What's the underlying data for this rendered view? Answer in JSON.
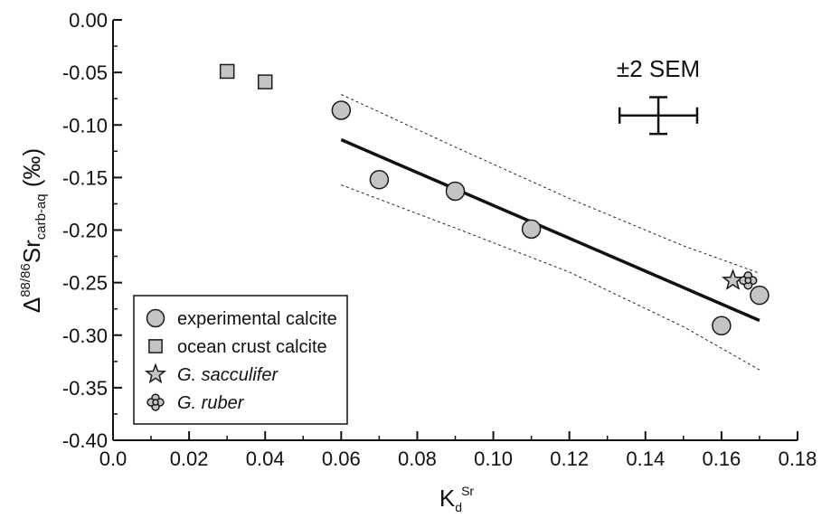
{
  "chart_data": {
    "type": "scatter",
    "xlabel": "K",
    "xlabel_sub": "d",
    "xlabel_sup": "Sr",
    "ylabel_prefix": "Δ",
    "ylabel_sup": "88/86",
    "ylabel_main": "Sr",
    "ylabel_sub": "carb-aq",
    "ylabel_unit": "(‰)",
    "xlim": [
      0.0,
      0.18
    ],
    "ylim": [
      -0.4,
      0.0
    ],
    "x_ticks": [
      "0.0",
      "0.02",
      "0.04",
      "0.06",
      "0.08",
      "0.10",
      "0.12",
      "0.14",
      "0.16",
      "0.18"
    ],
    "y_ticks": [
      "0.00",
      "-0.05",
      "-0.10",
      "-0.15",
      "-0.20",
      "-0.25",
      "-0.30",
      "-0.35",
      "-0.40"
    ],
    "grid": false,
    "legend_position": "bottom-left",
    "series": [
      {
        "name": "experimental calcite",
        "marker": "circle",
        "points": [
          {
            "x": 0.06,
            "y": -0.086
          },
          {
            "x": 0.07,
            "y": -0.152
          },
          {
            "x": 0.09,
            "y": -0.163
          },
          {
            "x": 0.11,
            "y": -0.199
          },
          {
            "x": 0.16,
            "y": -0.291
          },
          {
            "x": 0.17,
            "y": -0.262
          }
        ]
      },
      {
        "name": "ocean crust calcite",
        "marker": "square",
        "points": [
          {
            "x": 0.03,
            "y": -0.049
          },
          {
            "x": 0.04,
            "y": -0.059
          }
        ]
      },
      {
        "name": "G. sacculifer",
        "marker": "star",
        "italic": true,
        "points": [
          {
            "x": 0.163,
            "y": -0.248
          }
        ]
      },
      {
        "name": "G. ruber",
        "marker": "foram",
        "italic": true,
        "points": [
          {
            "x": 0.167,
            "y": -0.248
          }
        ]
      }
    ],
    "regression": {
      "x": [
        0.06,
        0.17
      ],
      "y": [
        -0.114,
        -0.286
      ]
    },
    "confidence_upper": [
      {
        "x": 0.06,
        "y": -0.071
      },
      {
        "x": 0.09,
        "y": -0.121
      },
      {
        "x": 0.12,
        "y": -0.17
      },
      {
        "x": 0.15,
        "y": -0.215
      },
      {
        "x": 0.17,
        "y": -0.241
      }
    ],
    "confidence_lower": [
      {
        "x": 0.06,
        "y": -0.157
      },
      {
        "x": 0.09,
        "y": -0.198
      },
      {
        "x": 0.12,
        "y": -0.24
      },
      {
        "x": 0.15,
        "y": -0.292
      },
      {
        "x": 0.17,
        "y": -0.333
      }
    ],
    "error_bar": {
      "label": "±2 SEM",
      "x": 0.1434,
      "y": -0.091,
      "x_err": 0.0102,
      "y_err": 0.0175
    },
    "colors": {
      "marker_fill": "#c4c4c4",
      "marker_stroke": "#1a1a1a",
      "line": "#111111"
    }
  }
}
